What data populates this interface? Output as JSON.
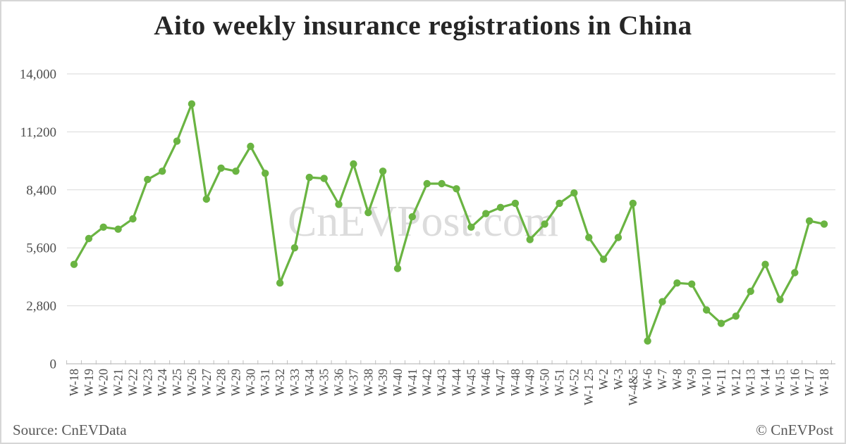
{
  "title": "Aito weekly insurance registrations in China",
  "watermark": "CnEVPost.com",
  "footer": {
    "source": "Source: CnEVData",
    "copyright": "© CnEVPost"
  },
  "colors": {
    "line": "#6ab442",
    "grid": "#d9d9d9",
    "axis": "#bfbfbf",
    "tick_label": "#4d4d4d",
    "title_text": "#262626",
    "watermark": "#dcdcdc",
    "footer_text": "#595959"
  },
  "chart_data": {
    "type": "line",
    "title": "Aito weekly insurance registrations in China",
    "series_name": "Aito weekly insurance registrations",
    "categories": [
      "W-18",
      "W-19",
      "W-20",
      "W-21",
      "W-22",
      "W-23",
      "W-24",
      "W-25",
      "W-26",
      "W-27",
      "W-28",
      "W-29",
      "W-30",
      "W-31",
      "W-32",
      "W-33",
      "W-34",
      "W-35",
      "W-36",
      "W-37",
      "W-38",
      "W-39",
      "W-40",
      "W-41",
      "W-42",
      "W-43",
      "W-44",
      "W-45",
      "W-46",
      "W-47",
      "W-48",
      "W-49",
      "W-50",
      "W-51",
      "W-52",
      "W-1 25",
      "W-2",
      "W-3",
      "W-4&5",
      "W-6",
      "W-7",
      "W-8",
      "W-9",
      "W-10",
      "W-11",
      "W-12",
      "W-13",
      "W-14",
      "W-15",
      "W-16",
      "W-17",
      "W-18"
    ],
    "values": [
      4800,
      6050,
      6600,
      6500,
      7000,
      8900,
      9300,
      10750,
      12550,
      7950,
      9450,
      9300,
      10500,
      9200,
      3900,
      5600,
      9000,
      8950,
      7700,
      9650,
      7300,
      9300,
      4600,
      7100,
      8700,
      8700,
      8450,
      6600,
      7250,
      7550,
      7750,
      6000,
      6750,
      7750,
      8250,
      6100,
      5050,
      6100,
      7750,
      1100,
      3000,
      3900,
      3850,
      2600,
      1950,
      2300,
      3500,
      4800,
      3100,
      4400,
      6900,
      6750
    ],
    "xlabel": "",
    "ylabel": "",
    "ylim": [
      0,
      14000
    ],
    "yticks": [
      0,
      2800,
      5600,
      8400,
      11200,
      14000
    ],
    "ytick_labels": [
      "0",
      "2,800",
      "5,600",
      "8,400",
      "11,200",
      "14,000"
    ],
    "grid": true,
    "legend": "none",
    "marker": "circle"
  }
}
